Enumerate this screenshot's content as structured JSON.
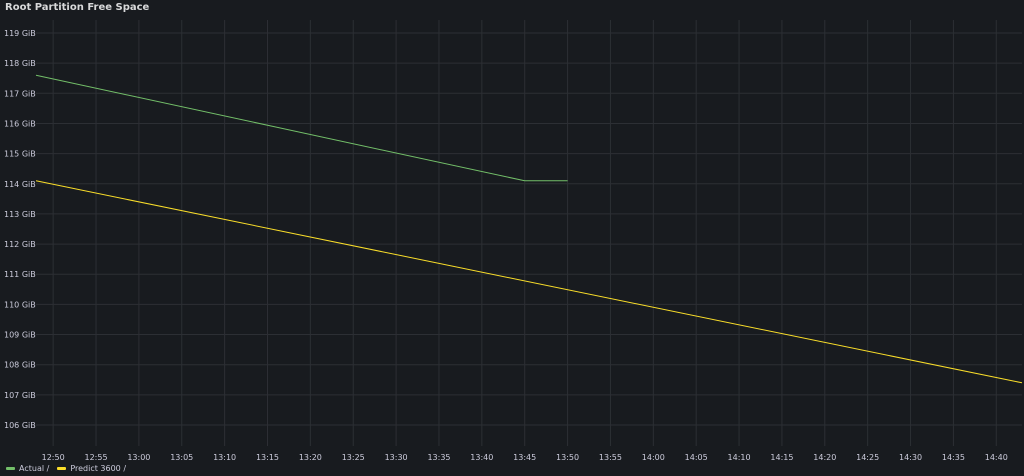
{
  "panel": {
    "title": "Root Partition Free Space"
  },
  "colors": {
    "background": "#181b1f",
    "grid": "#2c2f34",
    "actual": "#73bf69",
    "predict": "#fade2a",
    "tick_text": "#ccccdc"
  },
  "chart_data": {
    "type": "line",
    "title": "Root Partition Free Space",
    "xlabel": "",
    "ylabel": "",
    "x_ticks": [
      "12:50",
      "12:55",
      "13:00",
      "13:05",
      "13:10",
      "13:15",
      "13:20",
      "13:25",
      "13:30",
      "13:35",
      "13:40",
      "13:45",
      "13:50",
      "13:55",
      "14:00",
      "14:05",
      "14:10",
      "14:15",
      "14:20",
      "14:25",
      "14:30",
      "14:35",
      "14:40"
    ],
    "y_ticks": [
      "106 GiB",
      "107 GiB",
      "108 GiB",
      "109 GiB",
      "110 GiB",
      "111 GiB",
      "112 GiB",
      "113 GiB",
      "114 GiB",
      "115 GiB",
      "116 GiB",
      "117 GiB",
      "118 GiB",
      "119 GiB"
    ],
    "y_unit": "GiB",
    "ylim": [
      106,
      119
    ],
    "xlim": [
      "12:48",
      "14:43"
    ],
    "grid": true,
    "legend_position": "bottom-left",
    "series": [
      {
        "name": "Actual /",
        "color": "#73bf69",
        "points": [
          {
            "x": "12:48",
            "y": 117.6
          },
          {
            "x": "13:45",
            "y": 114.1
          },
          {
            "x": "13:50",
            "y": 114.1
          }
        ]
      },
      {
        "name": "Predict 3600 /",
        "color": "#fade2a",
        "points": [
          {
            "x": "12:48",
            "y": 114.1
          },
          {
            "x": "14:43",
            "y": 107.4
          }
        ]
      }
    ]
  }
}
